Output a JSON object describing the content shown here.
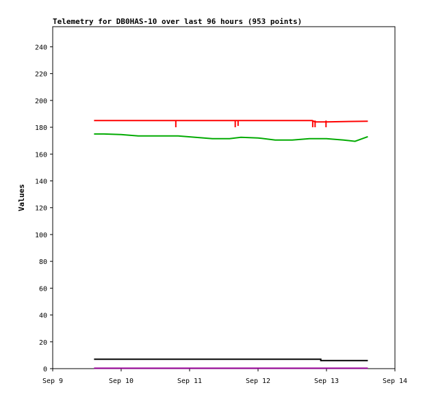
{
  "chart_data": {
    "type": "line",
    "title": "Telemetry for DB0HAS-10 over last 96 hours (953 points)",
    "xlabel": "",
    "ylabel": "Values",
    "x_ticks": [
      "Sep 9",
      "Sep 10",
      "Sep 11",
      "Sep 12",
      "Sep 13",
      "Sep 14"
    ],
    "y_ticks": [
      0,
      20,
      40,
      60,
      80,
      100,
      120,
      140,
      160,
      180,
      200,
      220,
      240
    ],
    "xlim": [
      "Sep 9 00:00",
      "Sep 14 00:00"
    ],
    "ylim": [
      0,
      255
    ],
    "grid": false,
    "legend": "none",
    "series": [
      {
        "color": "#ff0000",
        "x": [
          "Sep 9 14:30",
          "Sep 10 12:00",
          "Sep 10 19:00",
          "Sep 11 06:00",
          "Sep 11 16:00",
          "Sep 11 17:00",
          "Sep 12 06:00",
          "Sep 12 14:00",
          "Sep 12 19:00",
          "Sep 12 20:00",
          "Sep 13 00:00",
          "Sep 13 14:30"
        ],
        "values": [
          185,
          185,
          185,
          185,
          185,
          185,
          185,
          185,
          185,
          184,
          184,
          184.5
        ],
        "dips": [
          {
            "x": "Sep 10 19:10",
            "value": 180
          },
          {
            "x": "Sep 11 16:00",
            "value": 180
          },
          {
            "x": "Sep 11 17:00",
            "value": 181
          },
          {
            "x": "Sep 12 19:10",
            "value": 180
          },
          {
            "x": "Sep 12 20:00",
            "value": 180
          },
          {
            "x": "Sep 12 23:50",
            "value": 180
          }
        ]
      },
      {
        "color": "#00aa00",
        "x": [
          "Sep 9 14:30",
          "Sep 9 18:00",
          "Sep 10 00:00",
          "Sep 10 06:00",
          "Sep 10 14:00",
          "Sep 10 20:00",
          "Sep 11 02:00",
          "Sep 11 08:00",
          "Sep 11 14:00",
          "Sep 11 18:00",
          "Sep 12 00:00",
          "Sep 12 06:00",
          "Sep 12 12:00",
          "Sep 12 18:00",
          "Sep 13 00:00",
          "Sep 13 06:00",
          "Sep 13 10:00",
          "Sep 13 14:30"
        ],
        "values": [
          175,
          175,
          174.5,
          173.5,
          173.5,
          173.5,
          172.5,
          171.5,
          171.5,
          172.5,
          172,
          170.5,
          170.5,
          171.5,
          171.5,
          170.5,
          169.5,
          173
        ]
      },
      {
        "color": "#000000",
        "x": [
          "Sep 9 14:30",
          "Sep 12 22:00",
          "Sep 12 22:01",
          "Sep 13 14:30"
        ],
        "values": [
          7,
          7,
          6,
          6
        ]
      },
      {
        "color": "#990099",
        "x": [
          "Sep 9 14:30",
          "Sep 13 14:30"
        ],
        "values": [
          0.3,
          0.3
        ]
      }
    ]
  }
}
